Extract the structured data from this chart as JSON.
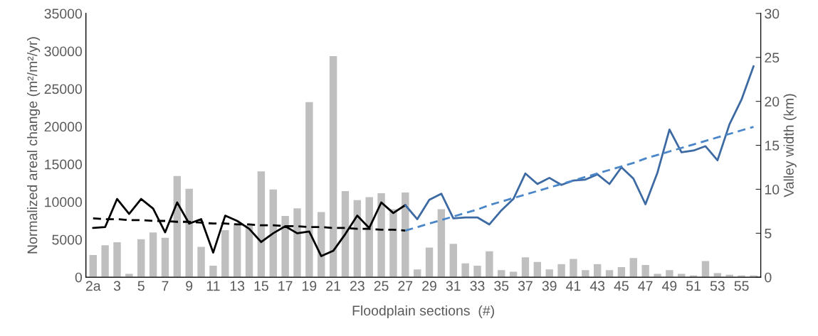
{
  "chart_data": {
    "type": "bar",
    "xlabel": "Floodplain sections  (#)",
    "ylabel": "Normalized areal change (m²/m²/yr)",
    "y2label": "Valley width (km)",
    "categories": [
      "2a",
      null,
      "3",
      null,
      "5",
      null,
      "7",
      null,
      "9",
      null,
      "11",
      null,
      "13",
      null,
      "15",
      null,
      "17",
      null,
      "19",
      null,
      "21",
      null,
      "23",
      null,
      "25",
      null,
      "27",
      null,
      "29",
      null,
      "31",
      null,
      "33",
      null,
      "35",
      null,
      "37",
      null,
      "39",
      null,
      "41",
      null,
      "43",
      null,
      "45",
      null,
      "47",
      null,
      "49",
      null,
      "51",
      null,
      "53",
      null,
      "55",
      null
    ],
    "ylim": [
      0,
      35000
    ],
    "yticks": [
      0,
      5000,
      10000,
      15000,
      20000,
      25000,
      30000,
      35000
    ],
    "y2lim": [
      0,
      30
    ],
    "y2ticks": [
      0,
      5,
      10,
      15,
      20,
      25,
      30
    ],
    "grid": false,
    "legend": false,
    "series": [
      {
        "color": "#bfbfbf",
        "values": [
          3000,
          4300,
          4700,
          500,
          5100,
          6000,
          5300,
          13500,
          11800,
          4100,
          1600,
          6300,
          7200,
          7000,
          14100,
          11700,
          8200,
          9200,
          23300,
          8700,
          29400,
          11500,
          10300,
          10700,
          11200,
          9100,
          11300,
          1100,
          4000,
          9100,
          4500,
          1900,
          1600,
          3500,
          1000,
          800,
          2700,
          2100,
          1100,
          1800,
          2500,
          1000,
          1800,
          1000,
          1400,
          2600,
          1700,
          500,
          1000,
          500,
          300,
          2200,
          600,
          400,
          300,
          300
        ]
      },
      {
        "type": "line",
        "axis": "y2",
        "color": "#000000",
        "line_style": "solid",
        "values": [
          5.6,
          5.7,
          8.9,
          7.2,
          8.9,
          7.8,
          5.1,
          8.5,
          6.1,
          6.6,
          2.8,
          7.0,
          6.4,
          5.5,
          4.0,
          5.0,
          5.8,
          5.0,
          5.2,
          2.4,
          3.0,
          4.9,
          7.0,
          5.6,
          8.5,
          7.3,
          8.2,
          null,
          null,
          null,
          null,
          null,
          null,
          null,
          null,
          null,
          null,
          null,
          null,
          null,
          null,
          null,
          null,
          null,
          null,
          null,
          null,
          null,
          null,
          null,
          null,
          null,
          null,
          null,
          null,
          null
        ]
      },
      {
        "type": "line",
        "axis": "y2",
        "color": "#3d6aa3",
        "line_style": "solid",
        "values": [
          null,
          null,
          null,
          null,
          null,
          null,
          null,
          null,
          null,
          null,
          null,
          null,
          null,
          null,
          null,
          null,
          null,
          null,
          null,
          null,
          null,
          null,
          null,
          null,
          null,
          null,
          8.2,
          6.6,
          8.8,
          9.5,
          6.7,
          6.8,
          6.8,
          6.0,
          7.6,
          8.9,
          11.8,
          10.6,
          11.3,
          10.5,
          11.0,
          11.1,
          11.7,
          10.6,
          12.5,
          11.2,
          8.3,
          11.9,
          16.8,
          14.2,
          14.4,
          14.9,
          13.3,
          17.4,
          20.2,
          24.0
        ]
      },
      {
        "type": "line",
        "axis": "y2",
        "color": "#000000",
        "line_style": "dashed",
        "values": [
          6.7,
          6.6,
          6.6,
          6.5,
          6.5,
          6.4,
          6.4,
          6.3,
          6.3,
          6.2,
          6.1,
          6.1,
          6.0,
          6.0,
          5.9,
          5.9,
          5.8,
          5.8,
          5.7,
          5.7,
          5.6,
          5.6,
          5.5,
          5.5,
          5.4,
          5.4,
          5.3,
          null,
          null,
          null,
          null,
          null,
          null,
          null,
          null,
          null,
          null,
          null,
          null,
          null,
          null,
          null,
          null,
          null,
          null,
          null,
          null,
          null,
          null,
          null,
          null,
          null,
          null,
          null,
          null,
          null
        ]
      },
      {
        "type": "line",
        "axis": "y2",
        "color": "#4a86c8",
        "line_style": "dashed",
        "values": [
          null,
          null,
          null,
          null,
          null,
          null,
          null,
          null,
          null,
          null,
          null,
          null,
          null,
          null,
          null,
          null,
          null,
          null,
          null,
          null,
          null,
          null,
          null,
          null,
          null,
          null,
          5.3,
          5.7,
          6.1,
          6.5,
          6.9,
          7.3,
          7.7,
          8.2,
          8.6,
          9.0,
          9.4,
          9.8,
          10.2,
          10.6,
          11.0,
          11.4,
          11.8,
          12.2,
          12.6,
          13.0,
          13.5,
          13.9,
          14.3,
          14.7,
          15.1,
          15.5,
          15.9,
          16.3,
          16.7,
          17.1
        ]
      }
    ]
  }
}
